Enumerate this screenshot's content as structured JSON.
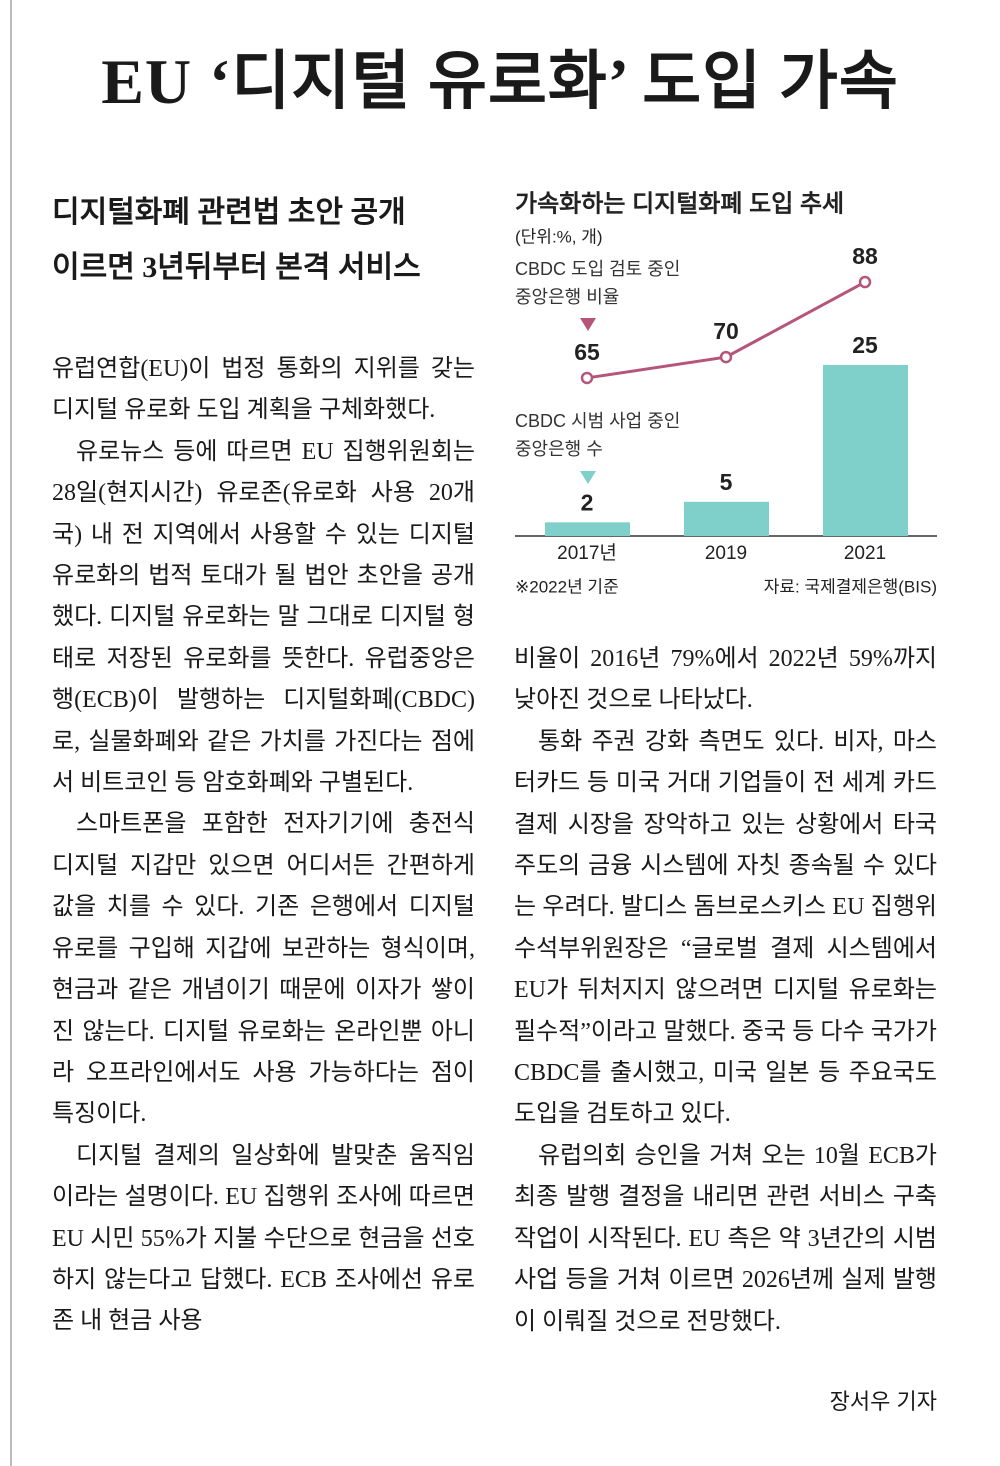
{
  "header": {
    "headline": "EU ‘디지털 유로화’ 도입 가속",
    "subheadlines": [
      "디지털화폐 관련법 초안 공개",
      "이르면 3년뒤부터 본격 서비스"
    ]
  },
  "article": {
    "left_column": [
      "유럽연합(EU)이 법정 통화의 지위를 갖는 디지털 유로화 도입 계획을 구체화했다.",
      "유로뉴스 등에 따르면 EU 집행위원회는 28일(현지시간) 유로존(유로화 사용 20개국) 내 전 지역에서 사용할 수 있는 디지털 유로화의 법적 토대가 될 법안 초안을 공개했다. 디지털 유로화는 말 그대로 디지털 형태로 저장된 유로화를 뜻한다. 유럽중앙은행(ECB)이 발행하는 디지털화폐(CBDC)로, 실물화폐와 같은 가치를 가진다는 점에서 비트코인 등 암호화폐와 구별된다.",
      "스마트폰을 포함한 전자기기에 충전식 디지털 지갑만 있으면 어디서든 간편하게 값을 치를 수 있다. 기존 은행에서 디지털 유로를 구입해 지갑에 보관하는 형식이며, 현금과 같은 개념이기 때문에 이자가 쌓이진 않는다. 디지털 유로화는 온라인뿐 아니라 오프라인에서도 사용 가능하다는 점이 특징이다.",
      "디지털 결제의 일상화에 발맞춘 움직임이라는 설명이다. EU 집행위 조사에 따르면 EU 시민 55%가 지불 수단으로 현금을 선호하지 않는다고 답했다. ECB 조사에선 유로존 내 현금 사용"
    ],
    "right_column": [
      "비율이 2016년 79%에서 2022년 59%까지 낮아진 것으로 나타났다.",
      "통화 주권 강화 측면도 있다. 비자, 마스터카드 등 미국 거대 기업들이 전 세계 카드 결제 시장을 장악하고 있는 상황에서 타국 주도의 금융 시스템에 자칫 종속될 수 있다는 우려다. 발디스 돔브로스키스 EU 집행위 수석부위원장은 “글로벌 결제 시스템에서 EU가 뒤처지지 않으려면 디지털 유로화는 필수적”이라고 말했다. 중국 등 다수 국가가 CBDC를 출시했고, 미국 일본 등 주요국도 도입을 검토하고 있다.",
      "유럽의회 승인을 거쳐 오는 10월 ECB가 최종 발행 결정을 내리면 관련 서비스 구축 작업이 시작된다. EU 측은 약 3년간의 시범사업 등을 거쳐 이르면 2026년께 실제 발행이 이뤄질 것으로 전망했다."
    ],
    "byline": "장서우 기자"
  },
  "chart_data": {
    "type": "combo",
    "title": "가속화하는 디지털화폐 도입 추세",
    "unit": "(단위:%, 개)",
    "categories": [
      "2017년",
      "2019",
      "2021"
    ],
    "series": [
      {
        "name": "CBDC 도입 검토 중인\n중앙은행 비율",
        "type": "line",
        "color": "#b5557a",
        "values": [
          65,
          70,
          88
        ]
      },
      {
        "name": "CBDC 시범 사업 중인\n중앙은행 수",
        "type": "bar",
        "color": "#7fcfcb",
        "values": [
          2,
          5,
          25
        ]
      }
    ],
    "note": "※2022년 기준",
    "source": "자료: 국제결제은행(BIS)"
  }
}
